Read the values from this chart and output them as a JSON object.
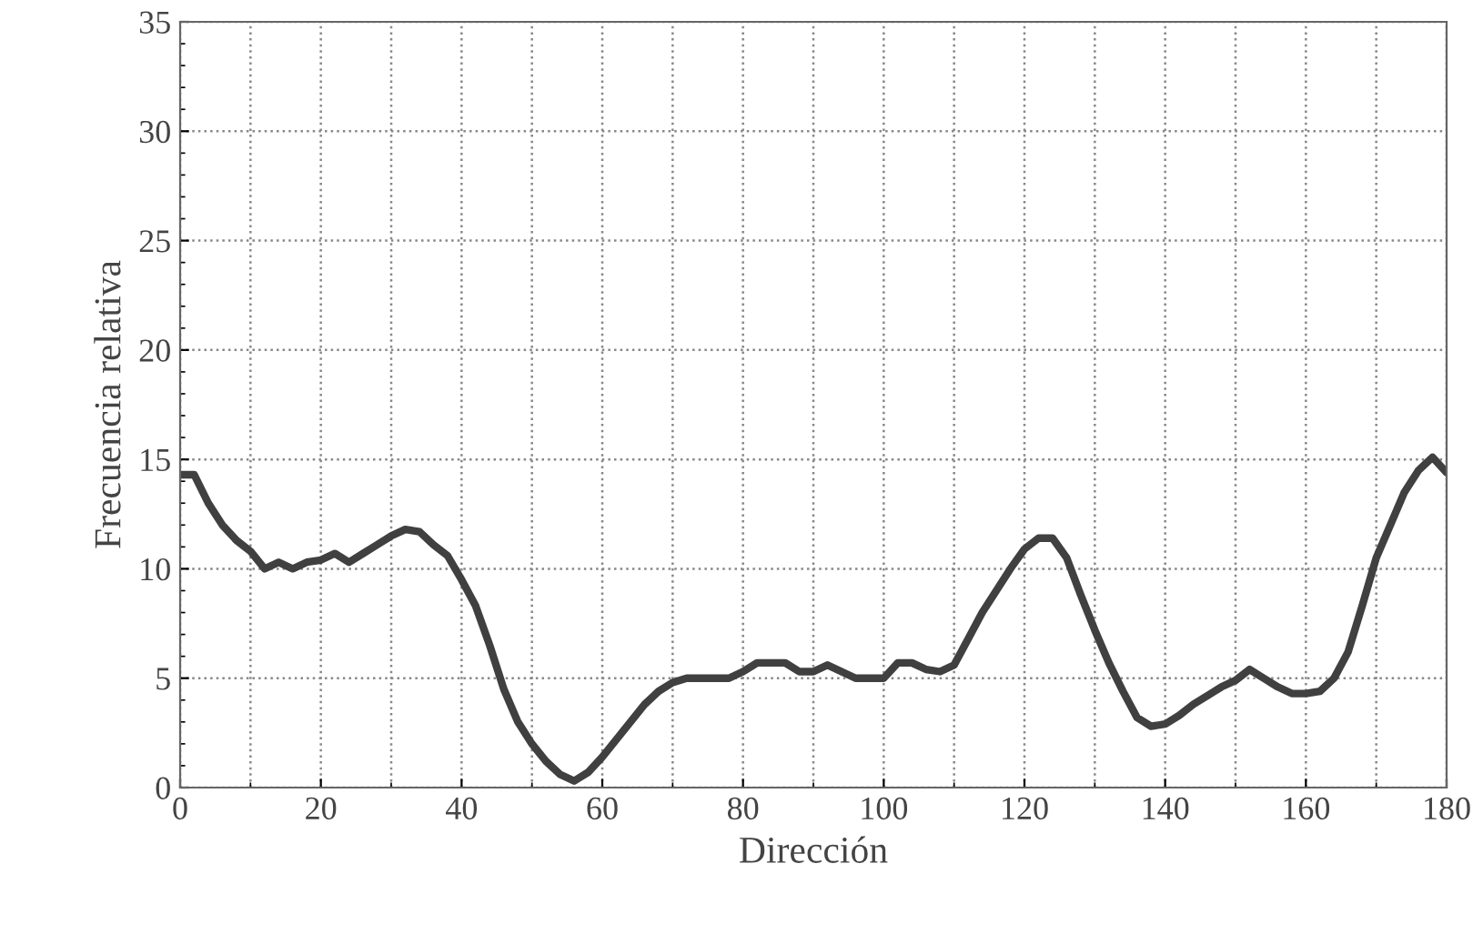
{
  "chart_data": {
    "type": "line",
    "xlabel": "Dirección",
    "ylabel": "Frecuencia relativa",
    "xlim": [
      0,
      180
    ],
    "ylim": [
      0,
      35
    ],
    "xticks": [
      0,
      20,
      40,
      60,
      80,
      100,
      120,
      140,
      160,
      180
    ],
    "yticks": [
      0,
      5,
      10,
      15,
      20,
      25,
      30,
      35
    ],
    "grid": true,
    "marker": "none",
    "line_style": "solid",
    "x": [
      0,
      2,
      4,
      6,
      8,
      10,
      12,
      14,
      16,
      18,
      20,
      22,
      24,
      26,
      28,
      30,
      32,
      34,
      36,
      38,
      40,
      42,
      44,
      46,
      48,
      50,
      52,
      54,
      56,
      58,
      60,
      62,
      64,
      66,
      68,
      70,
      72,
      74,
      76,
      78,
      80,
      82,
      84,
      86,
      88,
      90,
      92,
      94,
      96,
      98,
      100,
      102,
      104,
      106,
      108,
      110,
      112,
      114,
      116,
      118,
      120,
      122,
      124,
      126,
      128,
      130,
      132,
      134,
      136,
      138,
      140,
      142,
      144,
      146,
      148,
      150,
      152,
      154,
      156,
      158,
      160,
      162,
      164,
      166,
      168,
      170,
      172,
      174,
      176,
      178,
      180
    ],
    "series": [
      {
        "color": "#404040",
        "values": [
          14.3,
          14.3,
          13,
          12,
          11.3,
          10.8,
          10,
          10.3,
          10,
          10.3,
          10.4,
          10.7,
          10.3,
          10.7,
          11.1,
          11.5,
          11.8,
          11.7,
          11.1,
          10.6,
          9.5,
          8.3,
          6.5,
          4.5,
          3,
          2,
          1.2,
          0.6,
          0.3,
          0.7,
          1.4,
          2.2,
          3,
          3.8,
          4.4,
          4.8,
          5,
          5,
          5,
          5,
          5.3,
          5.7,
          5.7,
          5.7,
          5.3,
          5.3,
          5.6,
          5.3,
          5,
          5,
          5,
          5.7,
          5.7,
          5.4,
          5.3,
          5.6,
          6.8,
          8,
          9,
          10,
          10.9,
          11.4,
          11.4,
          10.5,
          8.8,
          7.2,
          5.7,
          4.4,
          3.2,
          2.8,
          2.9,
          3.3,
          3.8,
          4.2,
          4.6,
          4.9,
          5.4,
          5,
          4.6,
          4.3,
          4.3,
          4.4,
          5,
          6.2,
          8.3,
          10.5,
          12,
          13.5,
          14.5,
          15.1,
          14.4
        ]
      }
    ]
  }
}
